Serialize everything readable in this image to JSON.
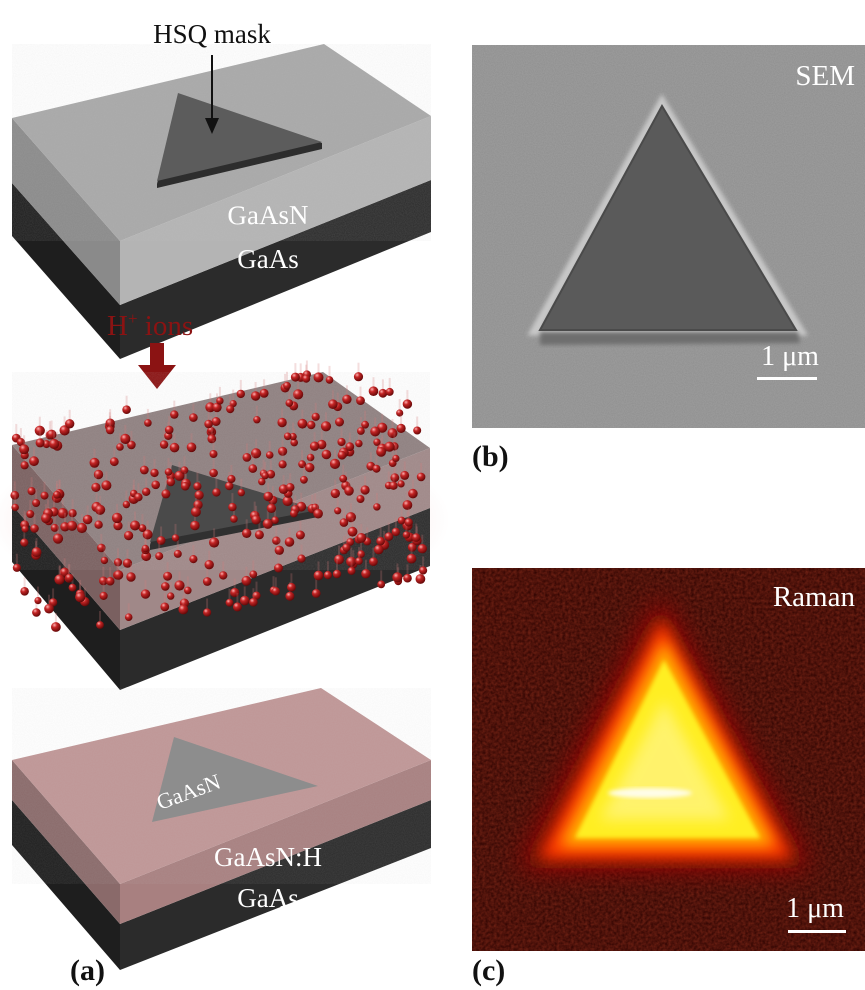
{
  "panel_a": {
    "label": "(a)",
    "mask_label": "HSQ mask",
    "top_layer_label": "GaAsN",
    "substrate_label": "GaAs",
    "ions_label_main": "H",
    "ions_label_sup": "+",
    "ions_label_rest": " ions",
    "bottom_triangle_label": "GaAsN",
    "bottom_layer_label": "GaAsN:H",
    "bottom_substrate_label": "GaAs"
  },
  "panel_b": {
    "label": "(b)",
    "technique": "SEM",
    "scale_bar": "1 μm"
  },
  "panel_c": {
    "label": "(c)",
    "technique": "Raman",
    "scale_bar": "1 μm"
  },
  "colors": {
    "ions": "#a01515",
    "substrate": "#2e2e2e",
    "hydrogenated_layer": "#c79898",
    "sem_background": "#8e8e8e",
    "raman_hot": "#ffff30"
  }
}
